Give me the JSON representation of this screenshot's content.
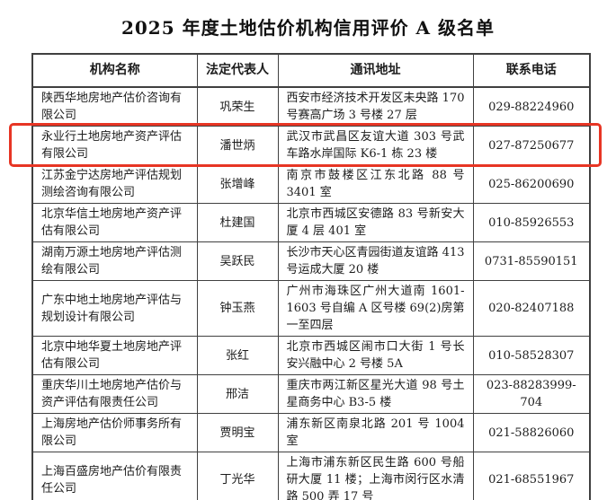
{
  "page": {
    "title": "2025 年度土地估价机构信用评价 A 级名单"
  },
  "table": {
    "headers": [
      "机构名称",
      "法定代表人",
      "通讯地址",
      "联系电话"
    ],
    "rows": [
      {
        "name": "陕西华地房地产估价咨询有限公司",
        "representative": "巩荣生",
        "address": "西安市经济技术开发区未央路 170 号赛高广场 3 号楼 27 层",
        "phone": "029-88224960",
        "highlighted": false
      },
      {
        "name": "永业行土地房地产资产评估有限公司",
        "representative": "潘世炳",
        "address": "武汉市武昌区友谊大道 303 号武车路水岸国际 K6-1 栋 23 楼",
        "phone": "027-87250677",
        "highlighted": true
      },
      {
        "name": "江苏金宁达房地产评估规划测绘咨询有限公司",
        "representative": "张增峰",
        "address": "南京市鼓楼区江东北路 88 号 3401 室",
        "phone": "025-86200690",
        "highlighted": false
      },
      {
        "name": "北京华信土地房地产资产评估有限公司",
        "representative": "杜建国",
        "address": "北京市西城区安德路 83 号新安大厦 4 层 401 室",
        "phone": "010-85926553",
        "highlighted": false
      },
      {
        "name": "湖南万源土地房地产评估测绘有限公司",
        "representative": "吴跃民",
        "address": "长沙市天心区青园街道友谊路 413 号运成大厦 20 楼",
        "phone": "0731-85590151",
        "highlighted": false
      },
      {
        "name": "广东中地土地房地产评估与规划设计有限公司",
        "representative": "钟玉燕",
        "address": "广州市海珠区广州大道南 1601-1603 号自编 A 区号楼 69(2)房第一至四层",
        "phone": "020-82407188",
        "highlighted": false
      },
      {
        "name": "北京中地华夏土地房地产评估有限公司",
        "representative": "张红",
        "address": "北京市西城区闹市口大街 1 号长安兴融中心 2 号楼 5A",
        "phone": "010-58528307",
        "highlighted": false
      },
      {
        "name": "重庆华川土地房地产估价与资产评估有限责任公司",
        "representative": "邢洁",
        "address": "重庆市两江新区星光大道 98 号土星商务中心 B3-5 楼",
        "phone": "023-88283999-704",
        "highlighted": false
      },
      {
        "name": "上海房地产估价师事务所有限公司",
        "representative": "贾明宝",
        "address": "浦东新区南泉北路 201 号 1004 室",
        "phone": "021-58826060",
        "highlighted": false
      },
      {
        "name": "上海百盛房地产估价有限责任公司",
        "representative": "丁光华",
        "address": "上海市浦东新区民生路 600 号船研大厦 11 楼；上海市闵行区水清路 500 弄 17 号",
        "phone": "021-68551967",
        "highlighted": false
      }
    ]
  },
  "highlight": {
    "color": "#e73524"
  }
}
